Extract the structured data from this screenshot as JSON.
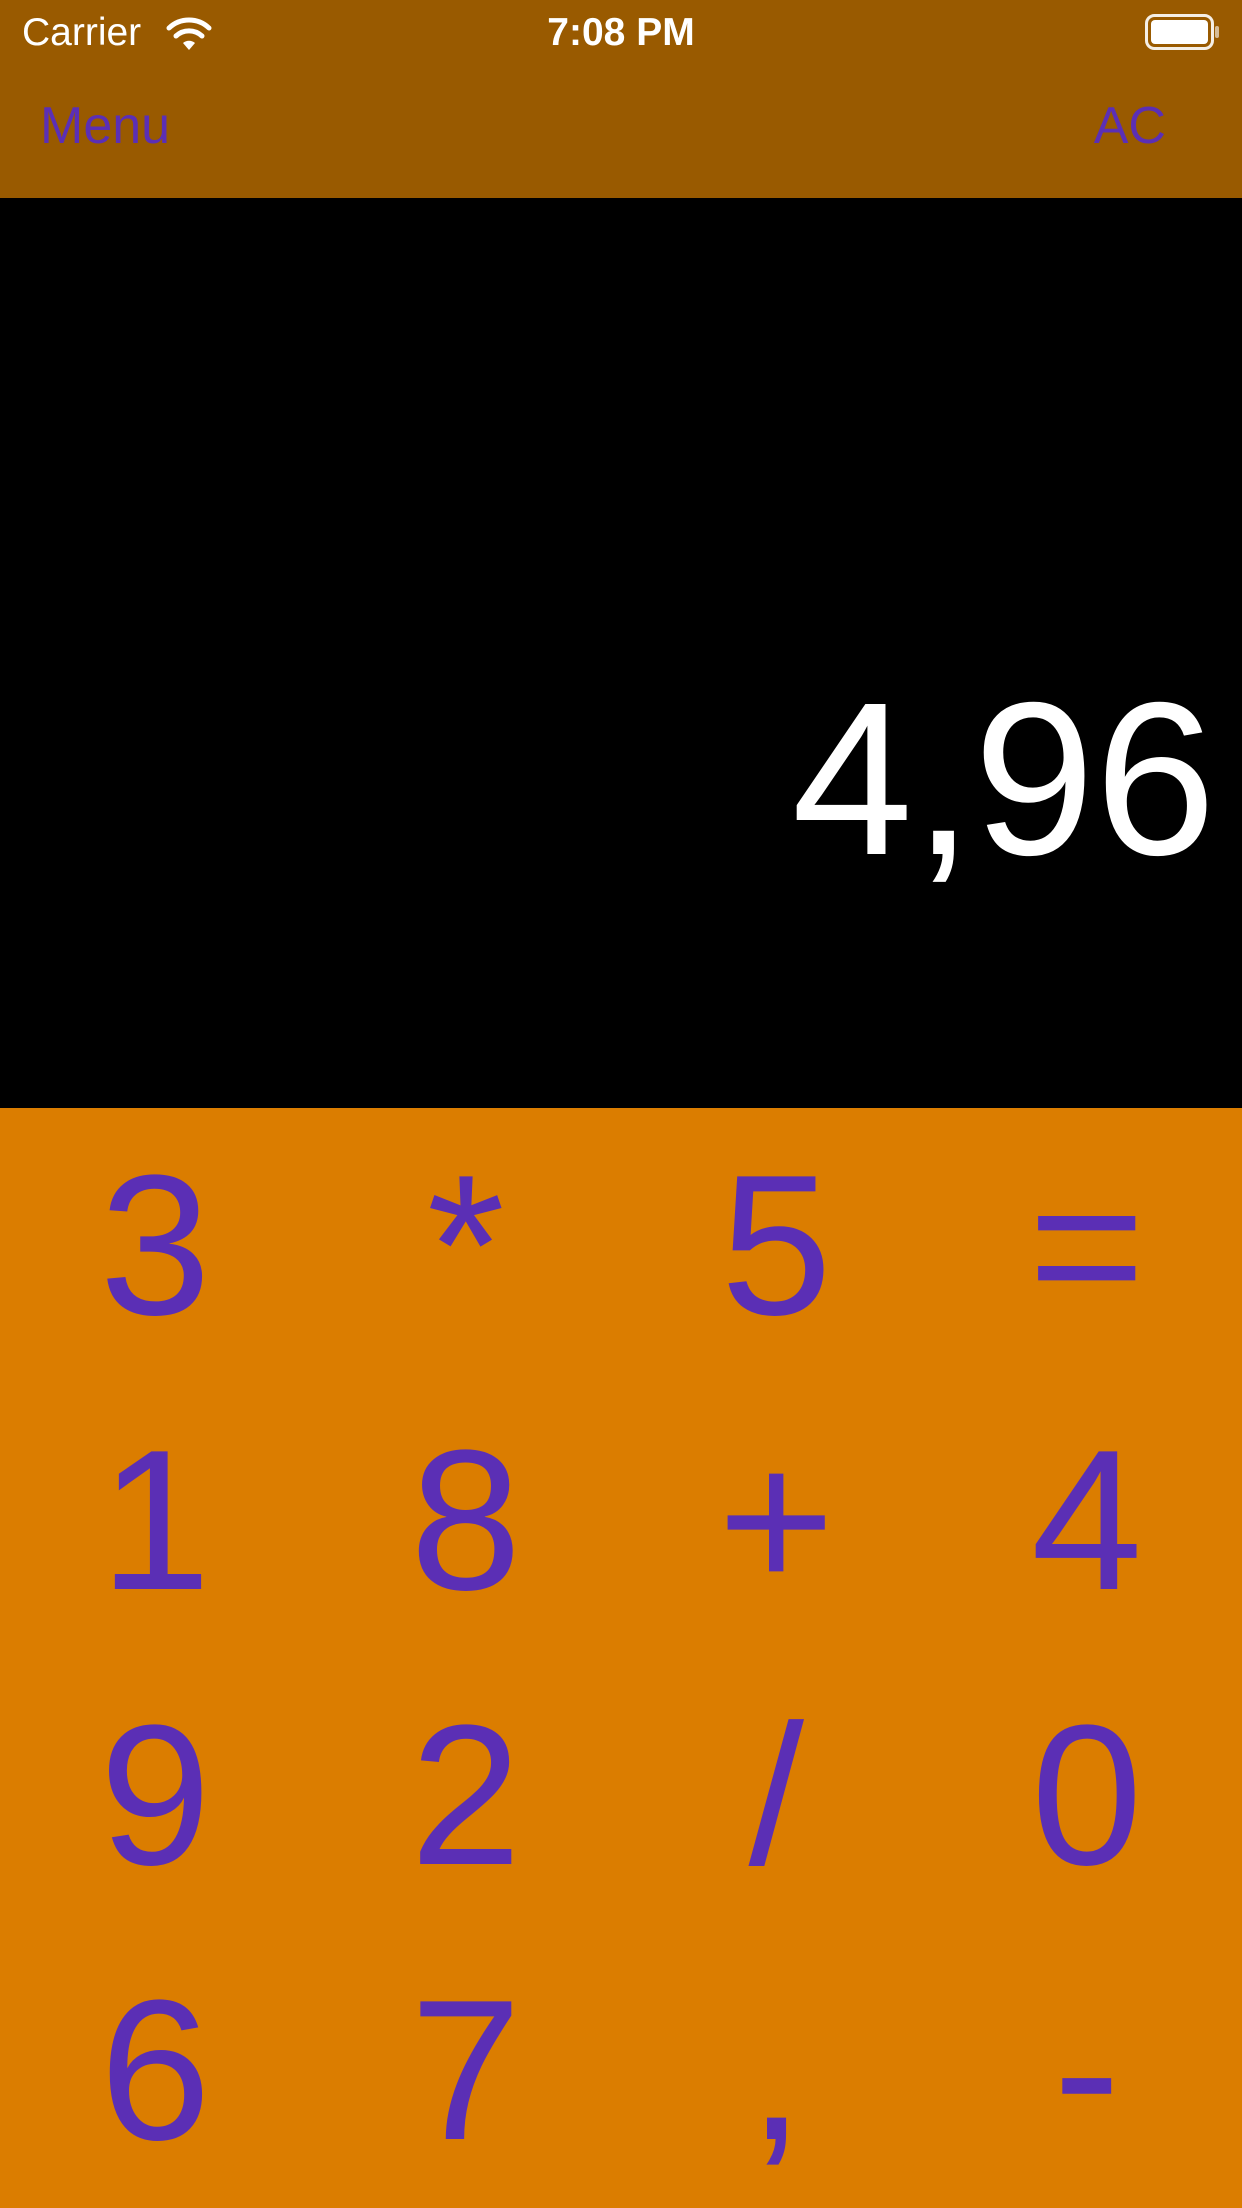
{
  "colors": {
    "nav_background": "#995a00",
    "keypad_background": "#db7d00",
    "button_text": "#5b2fb5",
    "display_background": "#000000",
    "display_text": "#ffffff",
    "status_text": "#ffffff"
  },
  "status_bar": {
    "carrier": "Carrier",
    "wifi_icon": "wifi-icon",
    "time": "7:08 PM",
    "battery_icon": "battery-full-icon"
  },
  "nav": {
    "left_button": "Menu",
    "right_button": "AC"
  },
  "display": {
    "value": "4,96"
  },
  "keypad": {
    "keys": [
      "3",
      "*",
      "5",
      "=",
      "1",
      "8",
      "+",
      "4",
      "9",
      "2",
      "/",
      "0",
      "6",
      "7",
      ",",
      "-"
    ]
  }
}
